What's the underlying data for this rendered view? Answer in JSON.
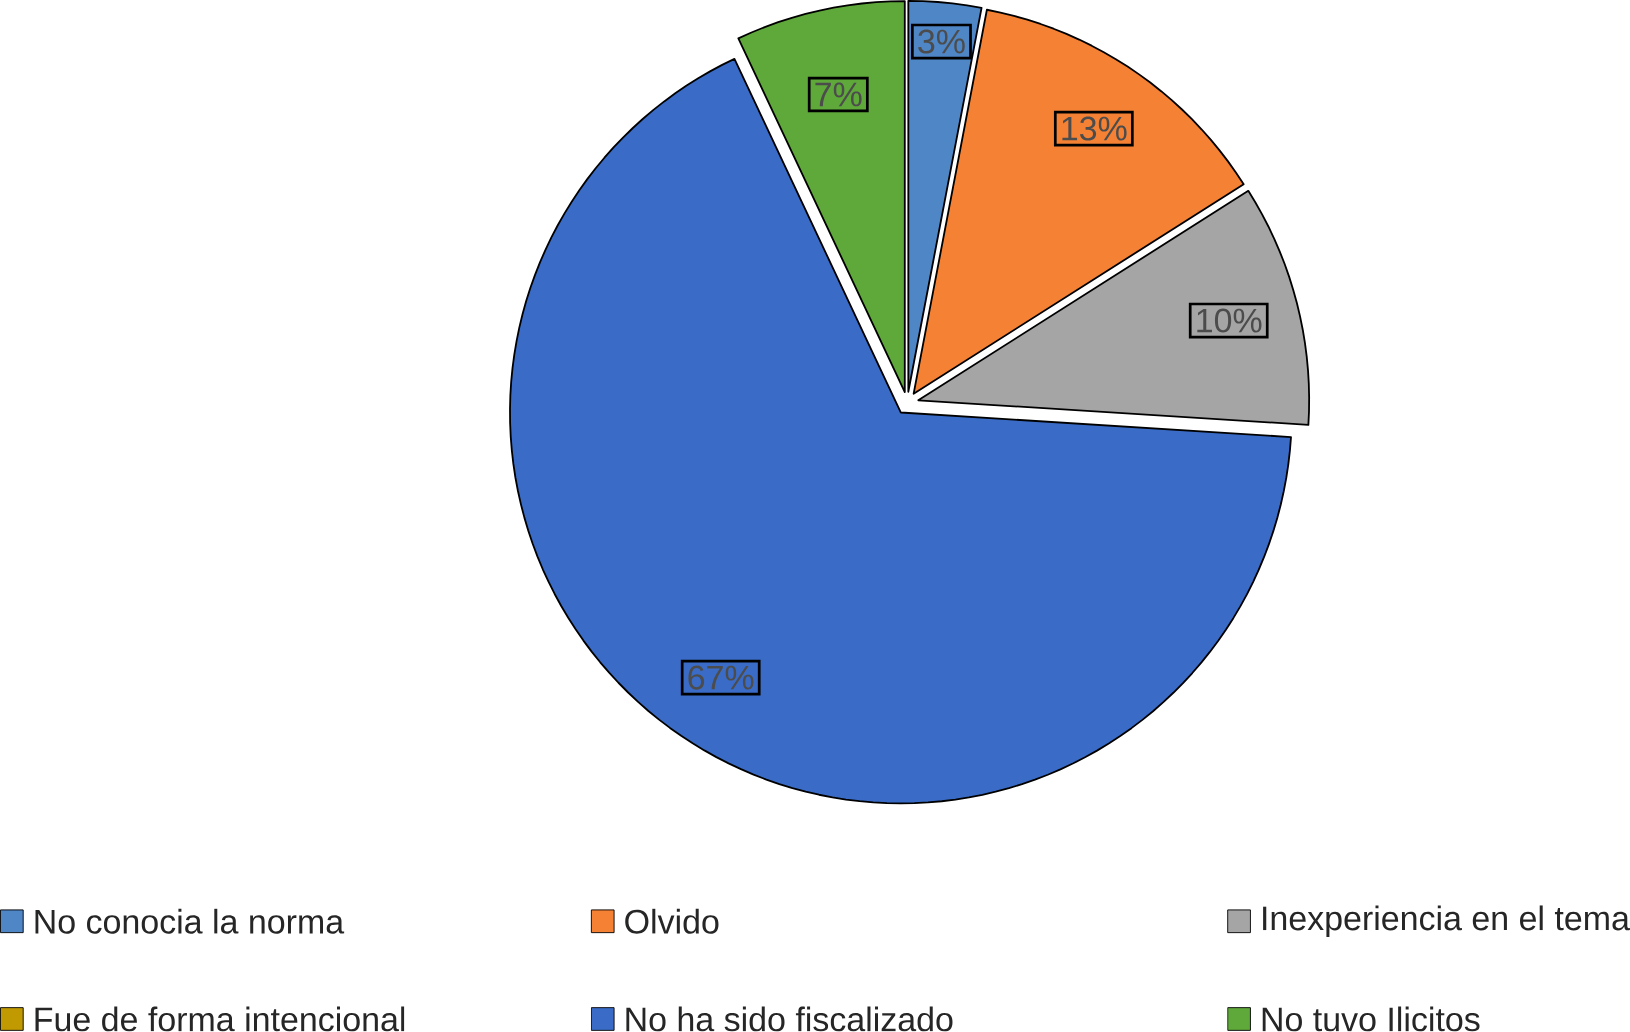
{
  "chart_data": {
    "type": "pie",
    "categories": [
      "No conocia la norma",
      "Olvido",
      "Inexperiencia en el tema",
      "Fue de forma intencional",
      "No ha sido fiscalizado",
      "No tuvo Ilicitos"
    ],
    "values": [
      3,
      13,
      10,
      0,
      67,
      7
    ],
    "colors": [
      "#4f86c6",
      "#f58234",
      "#a5a5a5",
      "#c09a00",
      "#3a6cc7",
      "#5fa83a"
    ],
    "value_labels": [
      "3%",
      "13%",
      "10%",
      null,
      "67%",
      "7%"
    ],
    "legend": "bottom"
  }
}
